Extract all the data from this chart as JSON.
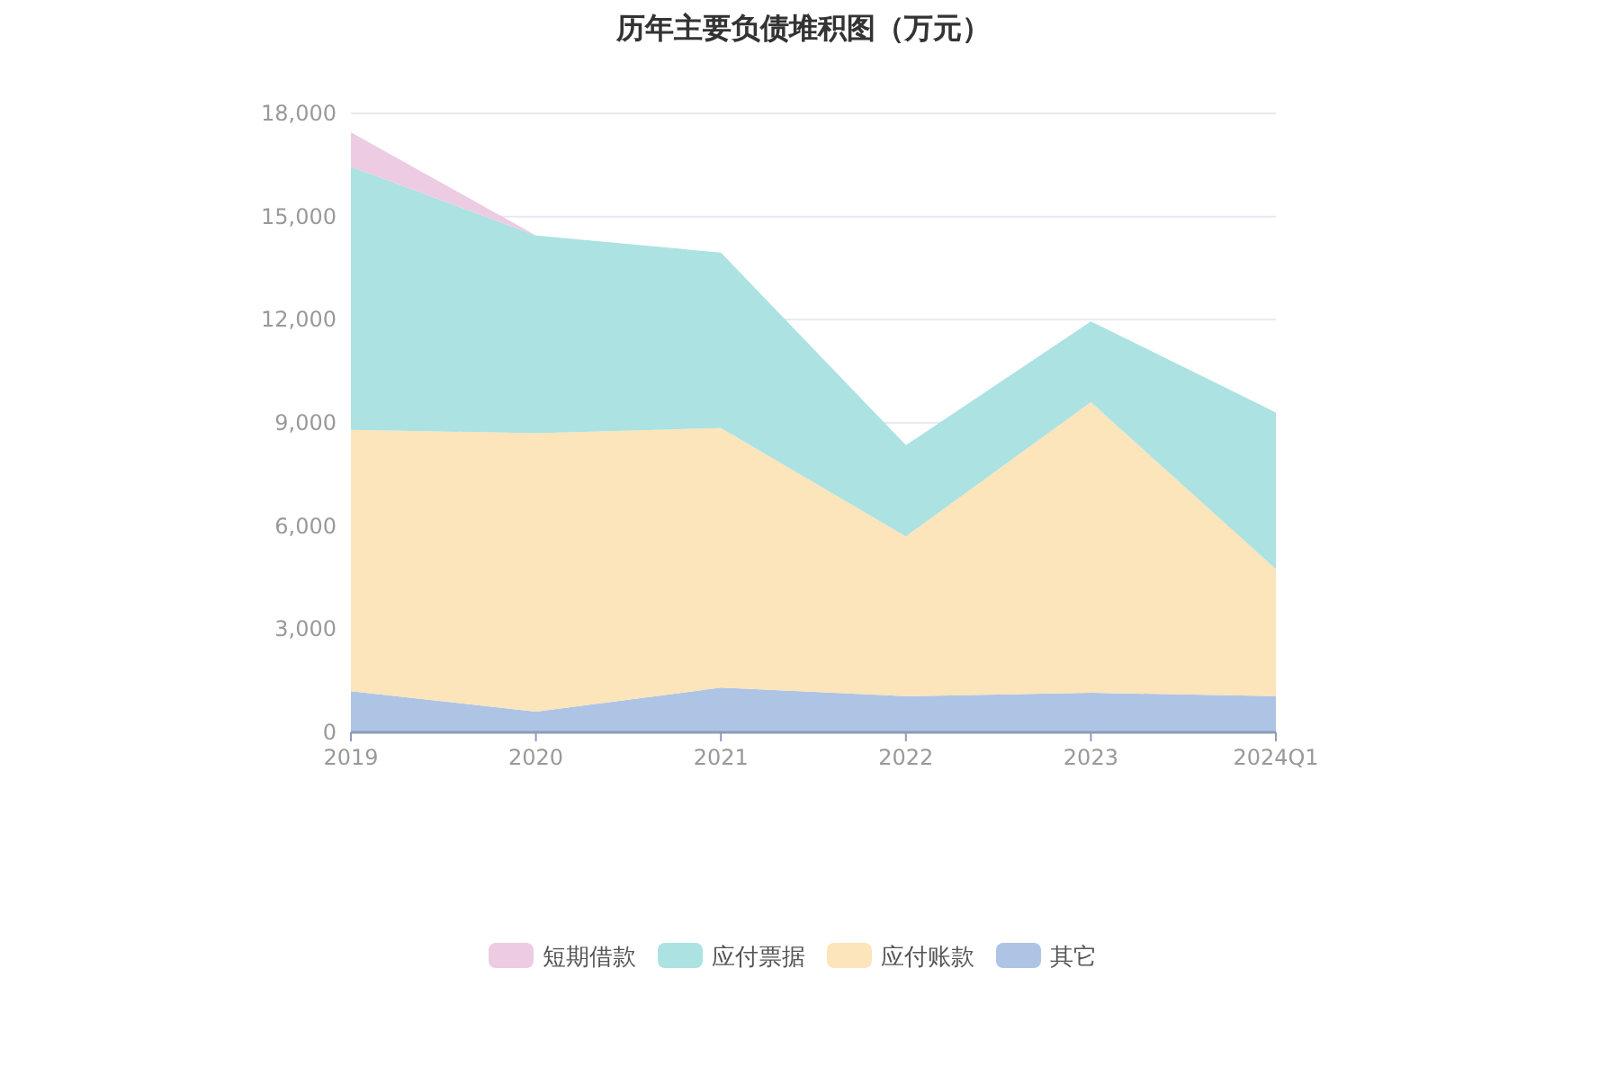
{
  "chart_data": {
    "type": "area",
    "title": "历年主要负债堆积图（万元）",
    "stacked": true,
    "categories": [
      "2019",
      "2020",
      "2021",
      "2022",
      "2023",
      "2024Q1"
    ],
    "series": [
      {
        "name": "其它",
        "color": "#aec4e5",
        "values": [
          1200,
          600,
          1300,
          1050,
          1150,
          1050
        ]
      },
      {
        "name": "应付账款",
        "color": "#fce4bb",
        "values": [
          7600,
          8100,
          7550,
          4650,
          8450,
          3700
        ]
      },
      {
        "name": "应付票据",
        "color": "#ace2e2",
        "values": [
          7650,
          5750,
          5100,
          2650,
          2350,
          4550
        ]
      },
      {
        "name": "短期借款",
        "color": "#edcbe3",
        "values": [
          1000,
          0,
          0,
          0,
          0,
          0
        ]
      }
    ],
    "ylim": [
      0,
      18000
    ],
    "yticks": [
      {
        "value": 0,
        "label": "0"
      },
      {
        "value": 3000,
        "label": "3,000"
      },
      {
        "value": 6000,
        "label": "6,000"
      },
      {
        "value": 9000,
        "label": "9,000"
      },
      {
        "value": 12000,
        "label": "12,000"
      },
      {
        "value": 15000,
        "label": "15,000"
      },
      {
        "value": 18000,
        "label": "18,000"
      }
    ],
    "grid": "y",
    "legend": "bottom"
  }
}
